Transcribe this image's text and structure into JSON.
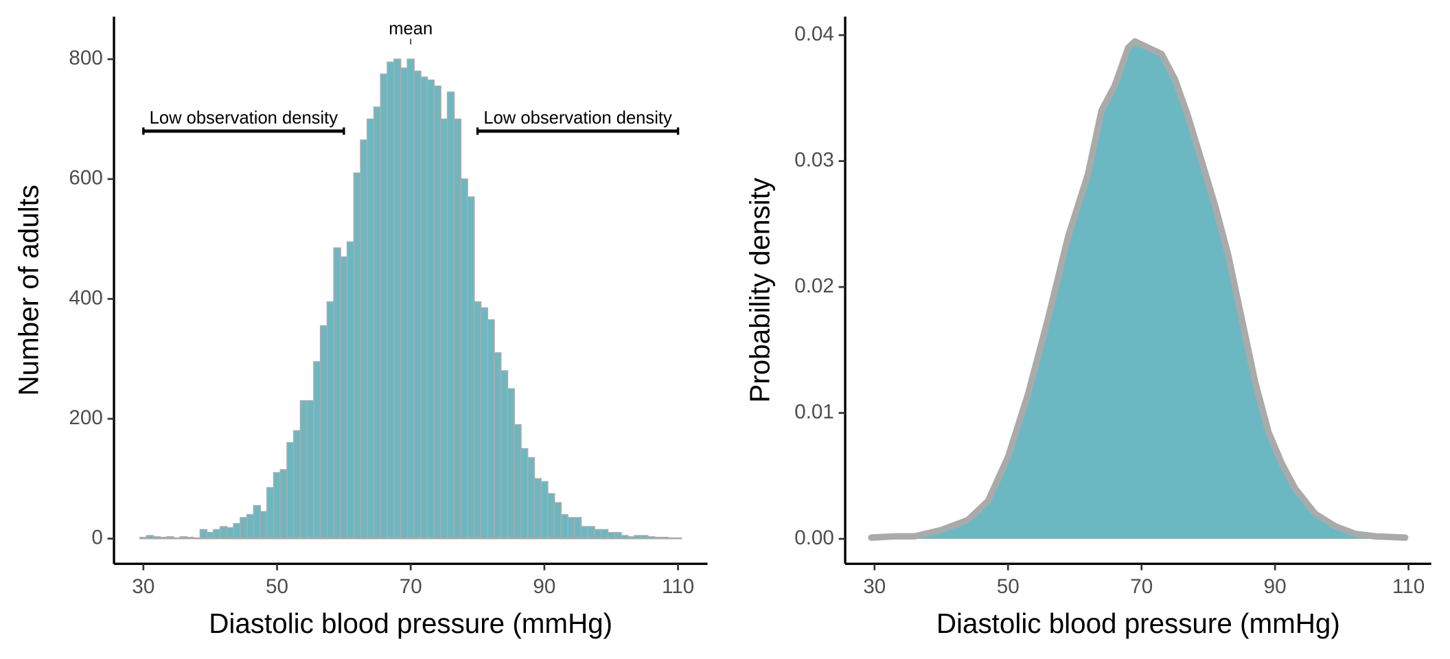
{
  "chart_data": [
    {
      "type": "histogram",
      "color": "#6bb8c2",
      "edge_color": "#aaaaaa",
      "x_label": "Diastolic blood pressure (mmHg)",
      "y_label": "Number of adults",
      "bins": [
        29.5,
        30.5,
        31.5,
        32.5,
        33.5,
        34.5,
        35.5,
        36.5,
        37.5,
        38.5,
        39.5,
        40.5,
        41.5,
        42.5,
        43.5,
        44.5,
        45.5,
        46.5,
        47.5,
        48.5,
        49.5,
        50.5,
        51.5,
        52.5,
        53.5,
        54.5,
        55.5,
        56.5,
        57.5,
        58.5,
        59.5,
        60.5,
        61.5,
        62.5,
        63.5,
        64.5,
        65.5,
        66.5,
        67.5,
        68.5,
        69.5,
        70.5,
        71.5,
        72.5,
        73.5,
        74.5,
        75.5,
        76.5,
        77.5,
        78.5,
        79.5,
        80.5,
        81.5,
        82.5,
        83.5,
        84.5,
        85.5,
        86.5,
        87.5,
        88.5,
        89.5,
        90.5,
        91.5,
        92.5,
        93.5,
        94.5,
        95.5,
        96.5,
        97.5,
        98.5,
        99.5,
        100.5,
        101.5,
        102.5,
        103.5,
        104.5,
        105.5,
        106.5,
        107.5,
        108.5,
        109.5,
        110.5
      ],
      "values": [
        2,
        5,
        3,
        2,
        3,
        1,
        3,
        2,
        1,
        15,
        10,
        15,
        20,
        18,
        25,
        35,
        40,
        55,
        45,
        85,
        110,
        115,
        160,
        180,
        230,
        230,
        295,
        355,
        395,
        485,
        470,
        495,
        610,
        665,
        700,
        720,
        775,
        795,
        800,
        785,
        800,
        780,
        770,
        765,
        755,
        700,
        745,
        700,
        600,
        570,
        395,
        385,
        365,
        310,
        280,
        250,
        190,
        150,
        135,
        100,
        95,
        75,
        60,
        40,
        35,
        35,
        20,
        20,
        15,
        15,
        10,
        10,
        5,
        3,
        5,
        5,
        3,
        2,
        2,
        1,
        1
      ],
      "xlim": [
        25.6,
        114.4
      ],
      "ylim": [
        -42,
        871
      ],
      "xticks": [
        30,
        50,
        70,
        90,
        110
      ],
      "yticks": [
        0,
        200,
        400,
        600,
        800
      ],
      "annotations": [
        {
          "text": "mean",
          "x": 70
        },
        {
          "text": "Low observation density",
          "range": [
            30,
            60
          ],
          "y": 680
        },
        {
          "text": "Low observation density",
          "range": [
            80,
            110
          ],
          "y": 680
        }
      ]
    },
    {
      "type": "area",
      "color": "#6bb8c2",
      "edge_color": "#aaaaaa",
      "x_label": "Diastolic blood pressure (mmHg)",
      "y_label": "Probability density",
      "x": [
        29.5,
        33,
        36,
        40,
        44,
        47,
        50,
        53,
        56,
        59,
        62,
        64,
        66,
        68,
        69,
        71,
        73,
        75,
        77,
        79,
        81,
        83,
        85,
        87,
        89,
        91,
        93,
        96,
        99,
        102,
        105,
        109.5
      ],
      "values": [
        0.0001,
        0.0002,
        0.0002,
        0.0007,
        0.0015,
        0.003,
        0.0065,
        0.0115,
        0.0175,
        0.024,
        0.029,
        0.034,
        0.036,
        0.039,
        0.0395,
        0.039,
        0.0385,
        0.0365,
        0.0335,
        0.03,
        0.0265,
        0.0225,
        0.0175,
        0.0125,
        0.0085,
        0.006,
        0.004,
        0.002,
        0.001,
        0.0004,
        0.0002,
        0.0001
      ],
      "xlim": [
        25.6,
        113.4
      ],
      "ylim": [
        -0.00198,
        0.04147
      ],
      "xticks": [
        30,
        50,
        70,
        90,
        110
      ],
      "yticks": [
        {
          "value": 0,
          "label": "0.00"
        },
        {
          "value": 0.01,
          "label": "0.01"
        },
        {
          "value": 0.02,
          "label": "0.02"
        },
        {
          "value": 0.03,
          "label": "0.03"
        },
        {
          "value": 0.04,
          "label": "0.04"
        }
      ]
    }
  ]
}
